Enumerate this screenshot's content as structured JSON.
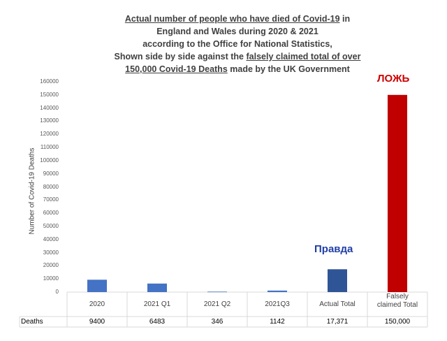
{
  "chart_data": {
    "type": "bar",
    "title_lines": [
      {
        "plain_before": "",
        "underlined": "Actual number of people who have died of Covid-19",
        "plain_after": " in"
      },
      {
        "plain_before": "England and Wales during 2020 & 2021",
        "underlined": "",
        "plain_after": ""
      },
      {
        "plain_before": "according to the Office for National Statistics,",
        "underlined": "",
        "plain_after": ""
      },
      {
        "plain_before": "Shown side by side against the ",
        "underlined": "falsely claimed total of over",
        "plain_after": ""
      },
      {
        "plain_before": "",
        "underlined": "150,000 Covid-19 Deaths",
        "plain_after": " made by the UK Government"
      }
    ],
    "ylabel": "Number of Covid-19 Deaths",
    "ylim": [
      0,
      160000
    ],
    "yticks": [
      "0",
      "10000",
      "20000",
      "30000",
      "40000",
      "50000",
      "60000",
      "70000",
      "80000",
      "90000",
      "100000",
      "110000",
      "120000",
      "130000",
      "140000",
      "150000",
      "160000"
    ],
    "categories": [
      "2020",
      "2021 Q1",
      "2021 Q2",
      "2021Q3",
      "Actual Total",
      "Falsely claimed Total"
    ],
    "values": [
      9400,
      6483,
      346,
      1142,
      17371,
      150000
    ],
    "value_labels": [
      "9400",
      "6483",
      "346",
      "1142",
      "17,371",
      "150,000"
    ],
    "row_label": "Deaths",
    "bar_colors": [
      "#4472c4",
      "#4472c4",
      "#4472c4",
      "#4472c4",
      "#2f5597",
      "#c00000"
    ],
    "annotations": {
      "truth": "Правда",
      "lie": "ЛОЖЬ"
    },
    "grid": false
  }
}
